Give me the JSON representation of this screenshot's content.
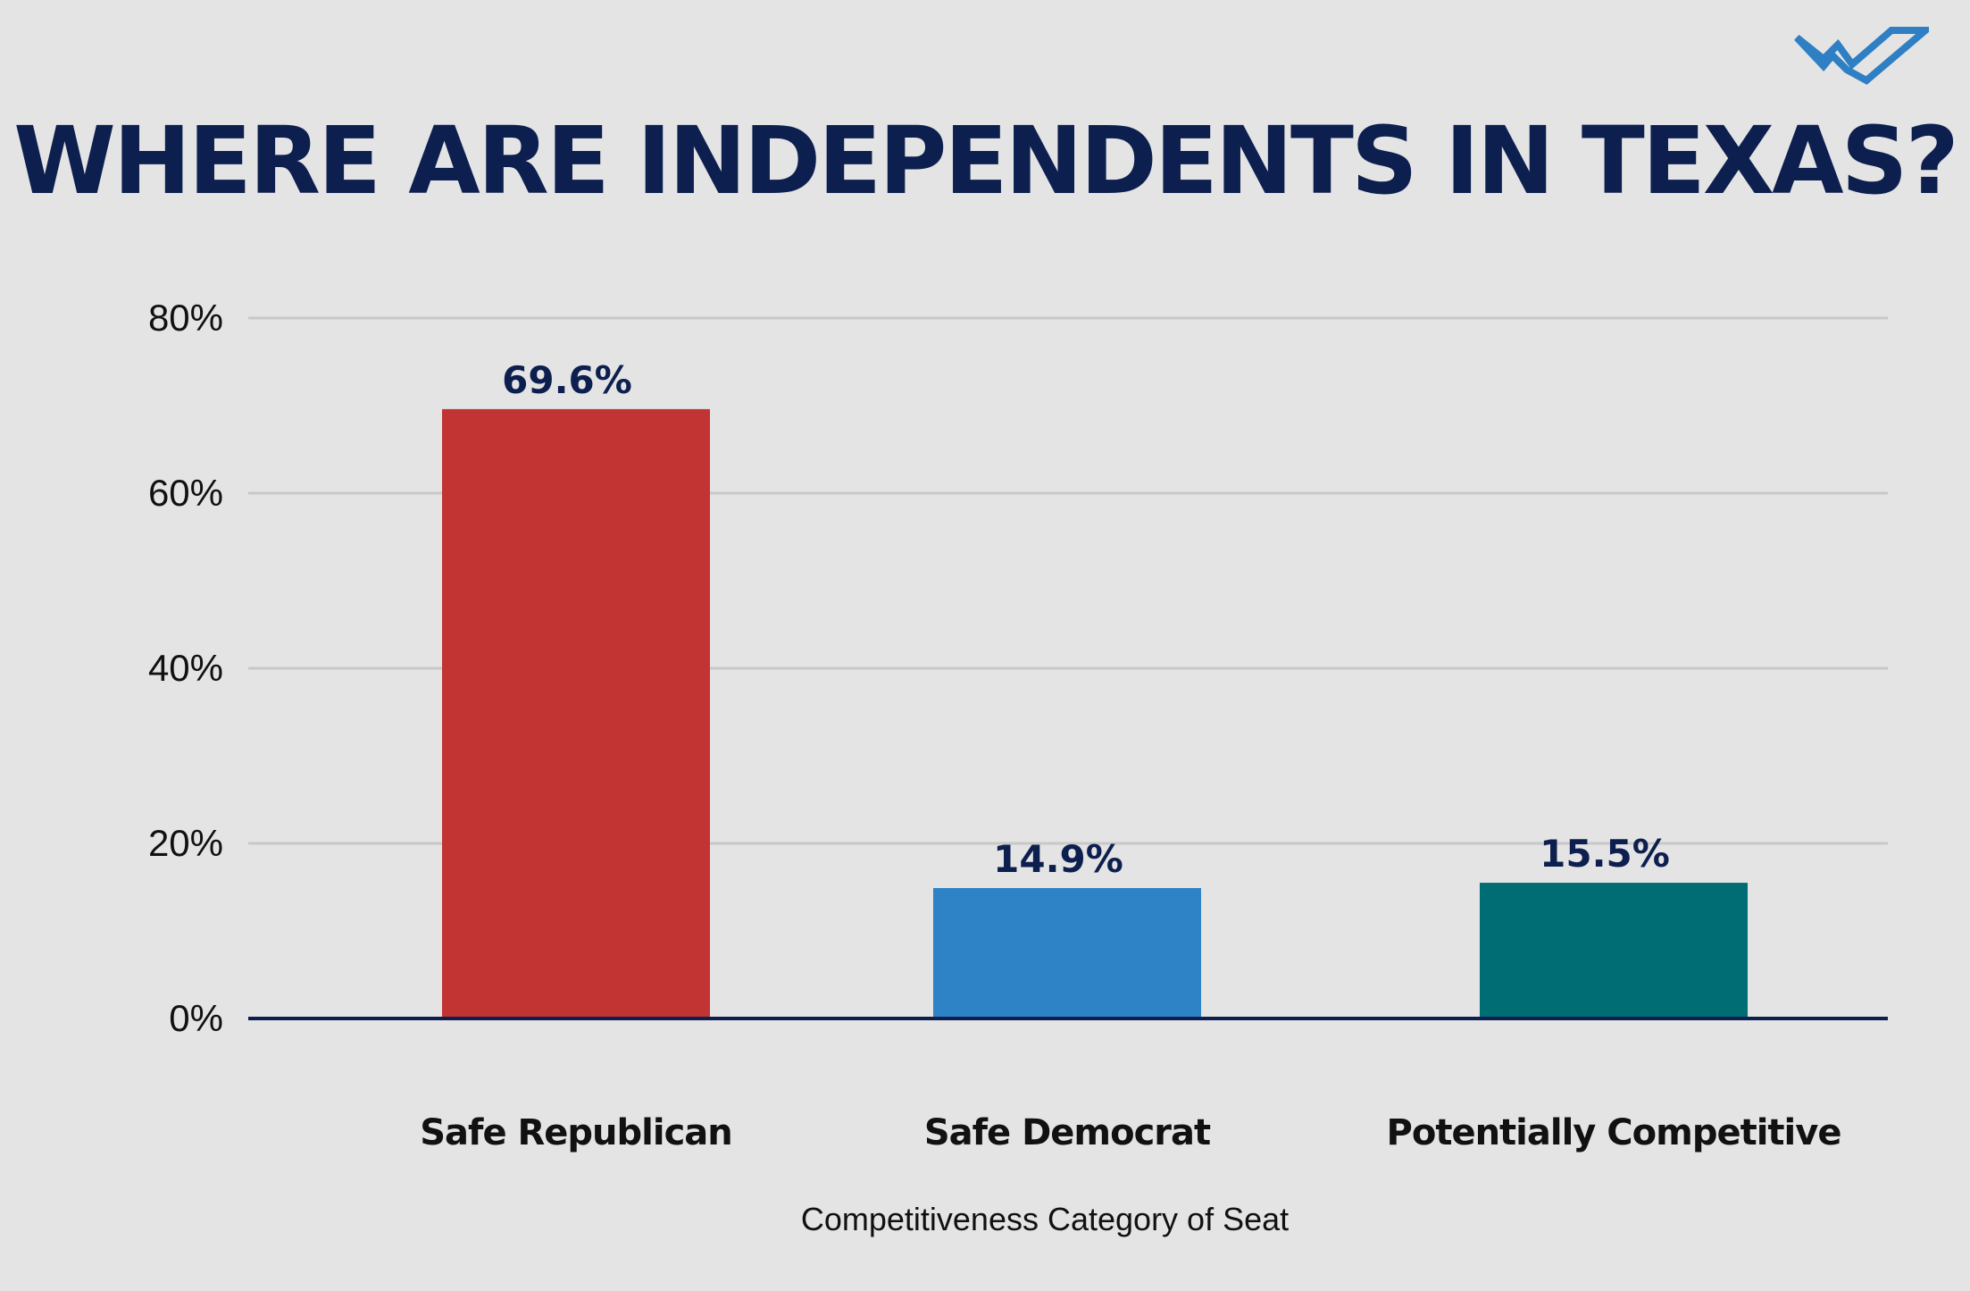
{
  "title": "WHERE ARE INDEPENDENTS IN TEXAS?",
  "logo": {
    "icon": "checkmark-logo-icon",
    "color": "#2e7fc3"
  },
  "colors": {
    "background": "#e4e4e4",
    "title": "#0d1f4f",
    "grid": "#c8c8c8",
    "baseline": "#0d1f4f",
    "value_label": "#0d1f4f"
  },
  "chart_data": {
    "type": "bar",
    "title": "WHERE ARE INDEPENDENTS IN TEXAS?",
    "xlabel": "Competitiveness Category of Seat",
    "ylabel": "",
    "categories": [
      "Safe Republican",
      "Safe Democrat",
      "Potentially Competitive"
    ],
    "values": [
      69.6,
      14.9,
      15.5
    ],
    "value_labels": [
      "69.6%",
      "14.9%",
      "15.5%"
    ],
    "bar_colors": [
      "#c23333",
      "#2e83c6",
      "#006c73"
    ],
    "ylim": [
      0,
      80
    ],
    "yticks": [
      0,
      20,
      40,
      60,
      80
    ],
    "ytick_labels": [
      "0%",
      "20%",
      "40%",
      "60%",
      "80%"
    ],
    "grid": true,
    "legend": "none"
  }
}
